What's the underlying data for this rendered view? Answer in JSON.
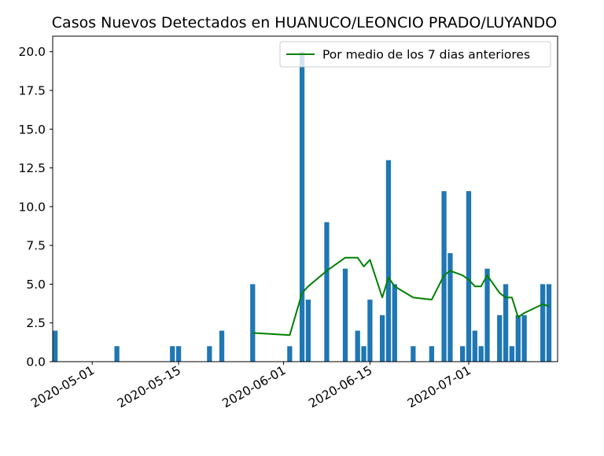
{
  "chart_data": {
    "type": "bar",
    "title": "Casos Nuevos Detectados en HUANUCO/LEONCIO PRADO/LUYANDO",
    "xlabel": "",
    "ylabel": "",
    "ylim": [
      0,
      21
    ],
    "xlim": [
      "2020-04-25",
      "2020-07-15"
    ],
    "grid": false,
    "legend_position": "top-right",
    "x_ticks": [
      "2020-05-01",
      "2020-05-15",
      "2020-06-01",
      "2020-06-15",
      "2020-07-01"
    ],
    "y_ticks": [
      "0.0",
      "2.5",
      "5.0",
      "7.5",
      "10.0",
      "12.5",
      "15.0",
      "17.5",
      "20.0"
    ],
    "bar_color": "#1f77b4",
    "line_color": "#008000",
    "series": [
      {
        "type": "bar",
        "data": [
          [
            "2020-04-25",
            2
          ],
          [
            "2020-05-05",
            1
          ],
          [
            "2020-05-14",
            1
          ],
          [
            "2020-05-15",
            1
          ],
          [
            "2020-05-20",
            1
          ],
          [
            "2020-05-22",
            2
          ],
          [
            "2020-05-27",
            5
          ],
          [
            "2020-06-02",
            1
          ],
          [
            "2020-06-04",
            20
          ],
          [
            "2020-06-05",
            4
          ],
          [
            "2020-06-08",
            9
          ],
          [
            "2020-06-11",
            6
          ],
          [
            "2020-06-13",
            2
          ],
          [
            "2020-06-14",
            1
          ],
          [
            "2020-06-15",
            4
          ],
          [
            "2020-06-17",
            3
          ],
          [
            "2020-06-18",
            13
          ],
          [
            "2020-06-19",
            5
          ],
          [
            "2020-06-22",
            1
          ],
          [
            "2020-06-25",
            1
          ],
          [
            "2020-06-27",
            11
          ],
          [
            "2020-06-28",
            7
          ],
          [
            "2020-06-30",
            1
          ],
          [
            "2020-07-01",
            11
          ],
          [
            "2020-07-02",
            2
          ],
          [
            "2020-07-03",
            1
          ],
          [
            "2020-07-04",
            6
          ],
          [
            "2020-07-06",
            3
          ],
          [
            "2020-07-07",
            5
          ],
          [
            "2020-07-08",
            1
          ],
          [
            "2020-07-09",
            3
          ],
          [
            "2020-07-10",
            3
          ],
          [
            "2020-07-13",
            5
          ],
          [
            "2020-07-14",
            5
          ]
        ]
      },
      {
        "type": "line",
        "name": "Por medio de los 7 dias anteriores",
        "data": [
          [
            "2020-05-27",
            1.86
          ],
          [
            "2020-06-02",
            1.71
          ],
          [
            "2020-06-04",
            4.43
          ],
          [
            "2020-06-05",
            4.86
          ],
          [
            "2020-06-08",
            5.86
          ],
          [
            "2020-06-11",
            6.71
          ],
          [
            "2020-06-13",
            6.71
          ],
          [
            "2020-06-14",
            6.14
          ],
          [
            "2020-06-15",
            6.57
          ],
          [
            "2020-06-17",
            4.14
          ],
          [
            "2020-06-18",
            5.43
          ],
          [
            "2020-06-19",
            4.86
          ],
          [
            "2020-06-22",
            4.14
          ],
          [
            "2020-06-25",
            4.0
          ],
          [
            "2020-06-27",
            5.57
          ],
          [
            "2020-06-28",
            5.86
          ],
          [
            "2020-06-30",
            5.57
          ],
          [
            "2020-07-01",
            5.29
          ],
          [
            "2020-07-02",
            4.86
          ],
          [
            "2020-07-03",
            4.86
          ],
          [
            "2020-07-04",
            5.57
          ],
          [
            "2020-07-06",
            4.43
          ],
          [
            "2020-07-07",
            4.14
          ],
          [
            "2020-07-08",
            4.14
          ],
          [
            "2020-07-09",
            2.86
          ],
          [
            "2020-07-10",
            3.14
          ],
          [
            "2020-07-13",
            3.71
          ],
          [
            "2020-07-14",
            3.57
          ]
        ]
      }
    ]
  }
}
